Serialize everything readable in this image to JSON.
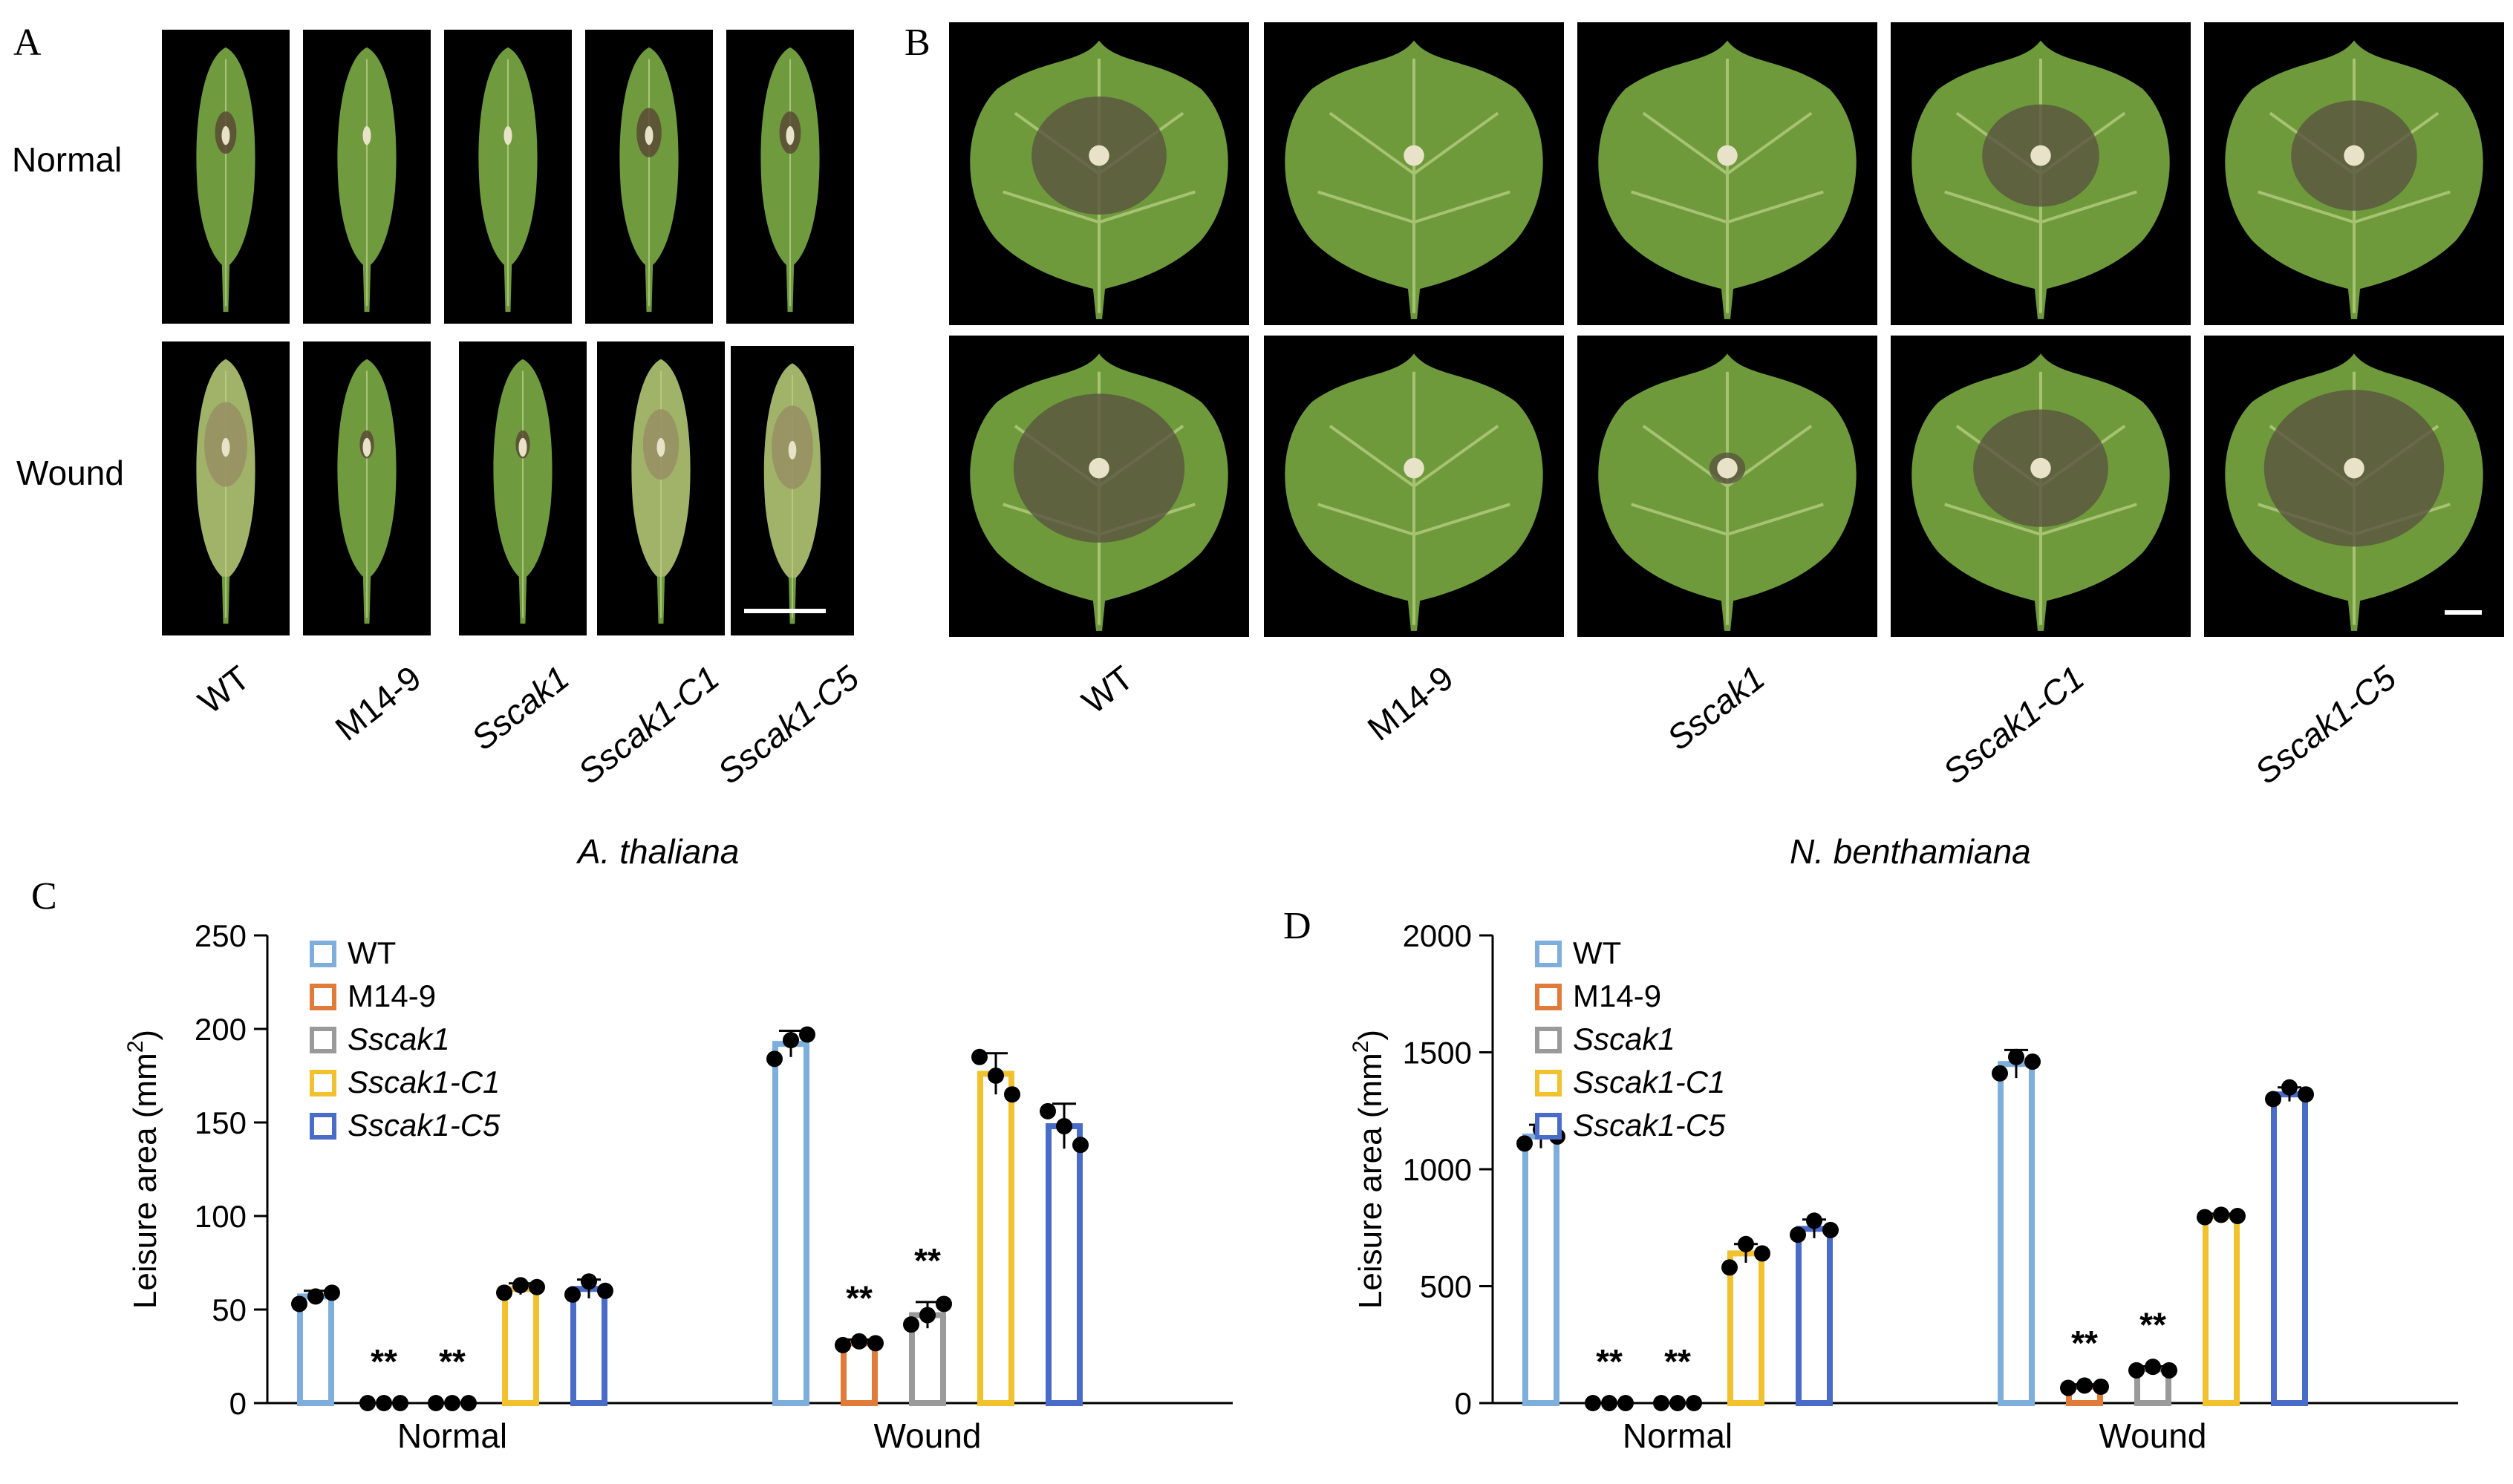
{
  "figure": {
    "panel_labels": {
      "a": "A",
      "b": "B",
      "c": "C",
      "d": "D"
    },
    "row_labels": {
      "normal": "Normal",
      "wound": "Wound"
    },
    "strains": [
      "WT",
      "M14-9",
      "Sscak1",
      "Sscak1-C1",
      "Sscak1-C5"
    ],
    "strains_italic": [
      false,
      false,
      true,
      true,
      true
    ],
    "host_a": "A. thaliana",
    "host_b": "N. benthamiana"
  },
  "chart_data": [
    {
      "type": "bar",
      "panel": "C",
      "title": "",
      "xlabel": "",
      "ylabel": "Leisure area (mm²)",
      "ylabel_base": "Leisure area (mm",
      "ylabel_sup": "2",
      "ylabel_end": ")",
      "ylim": [
        0,
        250
      ],
      "yticks": [
        0,
        50,
        100,
        150,
        200,
        250
      ],
      "categories": [
        "Normal",
        "Wound"
      ],
      "significance": "**",
      "legend_position": "top-left",
      "series": [
        {
          "name": "WT",
          "italic": false,
          "color": "#7eaedb",
          "values": [
            57,
            192
          ],
          "err": [
            3,
            7
          ],
          "points": [
            [
              53,
              57,
              59
            ],
            [
              184,
              194,
              197
            ]
          ],
          "sig": [
            false,
            false
          ]
        },
        {
          "name": "M14-9",
          "italic": false,
          "color": "#e07b39",
          "values": [
            0,
            32
          ],
          "err": [
            0,
            2
          ],
          "points": [
            [
              0,
              0,
              0
            ],
            [
              31,
              33,
              32
            ]
          ],
          "sig": [
            true,
            true
          ]
        },
        {
          "name": "Sscak1",
          "italic": true,
          "color": "#9a9a9a",
          "values": [
            0,
            47
          ],
          "err": [
            0,
            7
          ],
          "points": [
            [
              0,
              0,
              0
            ],
            [
              42,
              47,
              53
            ]
          ],
          "sig": [
            true,
            true
          ]
        },
        {
          "name": "Sscak1-C1",
          "italic": true,
          "color": "#f2c12e",
          "values": [
            61,
            176
          ],
          "err": [
            3,
            11
          ],
          "points": [
            [
              59,
              63,
              62
            ],
            [
              185,
              175,
              165
            ]
          ],
          "sig": [
            false,
            false
          ]
        },
        {
          "name": "Sscak1-C5",
          "italic": true,
          "color": "#4a6cc9",
          "values": [
            61,
            148
          ],
          "err": [
            5,
            12
          ],
          "points": [
            [
              58,
              65,
              60
            ],
            [
              156,
              148,
              138
            ]
          ],
          "sig": [
            false,
            false
          ]
        }
      ]
    },
    {
      "type": "bar",
      "panel": "D",
      "title": "",
      "xlabel": "",
      "ylabel": "Leisure area (mm²)",
      "ylabel_base": "Leisure area (mm",
      "ylabel_sup": "2",
      "ylabel_end": ")",
      "ylim": [
        0,
        2000
      ],
      "yticks": [
        0,
        500,
        1000,
        1500,
        2000
      ],
      "categories": [
        "Normal",
        "Wound"
      ],
      "significance": "**",
      "legend_position": "top-left",
      "series": [
        {
          "name": "WT",
          "italic": false,
          "color": "#7eaedb",
          "values": [
            1140,
            1450
          ],
          "err": [
            50,
            60
          ],
          "points": [
            [
              1110,
              1170,
              1140
            ],
            [
              1410,
              1480,
              1460
            ]
          ],
          "sig": [
            false,
            false
          ]
        },
        {
          "name": "M14-9",
          "italic": false,
          "color": "#e07b39",
          "values": [
            0,
            70
          ],
          "err": [
            0,
            10
          ],
          "points": [
            [
              0,
              0,
              0
            ],
            [
              65,
              75,
              70
            ]
          ],
          "sig": [
            true,
            true
          ]
        },
        {
          "name": "Sscak1",
          "italic": true,
          "color": "#9a9a9a",
          "values": [
            0,
            145
          ],
          "err": [
            0,
            12
          ],
          "points": [
            [
              0,
              0,
              0
            ],
            [
              140,
              155,
              140
            ]
          ],
          "sig": [
            true,
            true
          ]
        },
        {
          "name": "Sscak1-C1",
          "italic": true,
          "color": "#f2c12e",
          "values": [
            640,
            800
          ],
          "err": [
            40,
            10
          ],
          "points": [
            [
              580,
              680,
              640
            ],
            [
              795,
              805,
              800
            ]
          ],
          "sig": [
            false,
            false
          ]
        },
        {
          "name": "Sscak1-C5",
          "italic": true,
          "color": "#4a6cc9",
          "values": [
            745,
            1320
          ],
          "err": [
            40,
            30
          ],
          "points": [
            [
              720,
              780,
              740
            ],
            [
              1300,
              1350,
              1320
            ]
          ],
          "sig": [
            false,
            false
          ]
        }
      ]
    }
  ]
}
